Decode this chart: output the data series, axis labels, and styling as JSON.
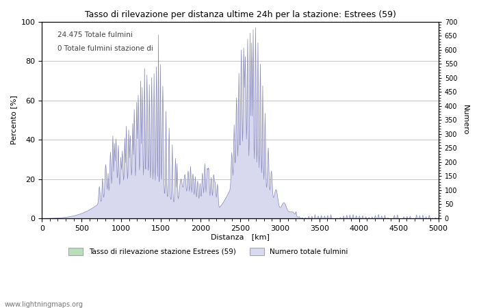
{
  "title": "Tasso di rilevazione per distanza ultime 24h per la stazione: Estrees (59)",
  "xlabel": "Distanza [km]",
  "ylabel_left": "Percento [%]",
  "ylabel_right": "Numero",
  "xlim": [
    0,
    5000
  ],
  "ylim_left": [
    0,
    100
  ],
  "ylim_right": [
    0,
    700
  ],
  "annotation_line1": "24.475 Totale fulmini",
  "annotation_line2": "0 Totale fulmini stazione di",
  "legend_green": "Tasso di rilevazione stazione Estrees (59)",
  "legend_blue": "Numero totale fulmini",
  "website": "www.lightningmaps.org",
  "fill_blue_color": "#d8d8ee",
  "fill_blue_edge": "#8888bb",
  "fill_green_color": "#bbddbb",
  "fill_green_edge": "#88bb88",
  "background_color": "#ffffff",
  "grid_color": "#bbbbbb"
}
